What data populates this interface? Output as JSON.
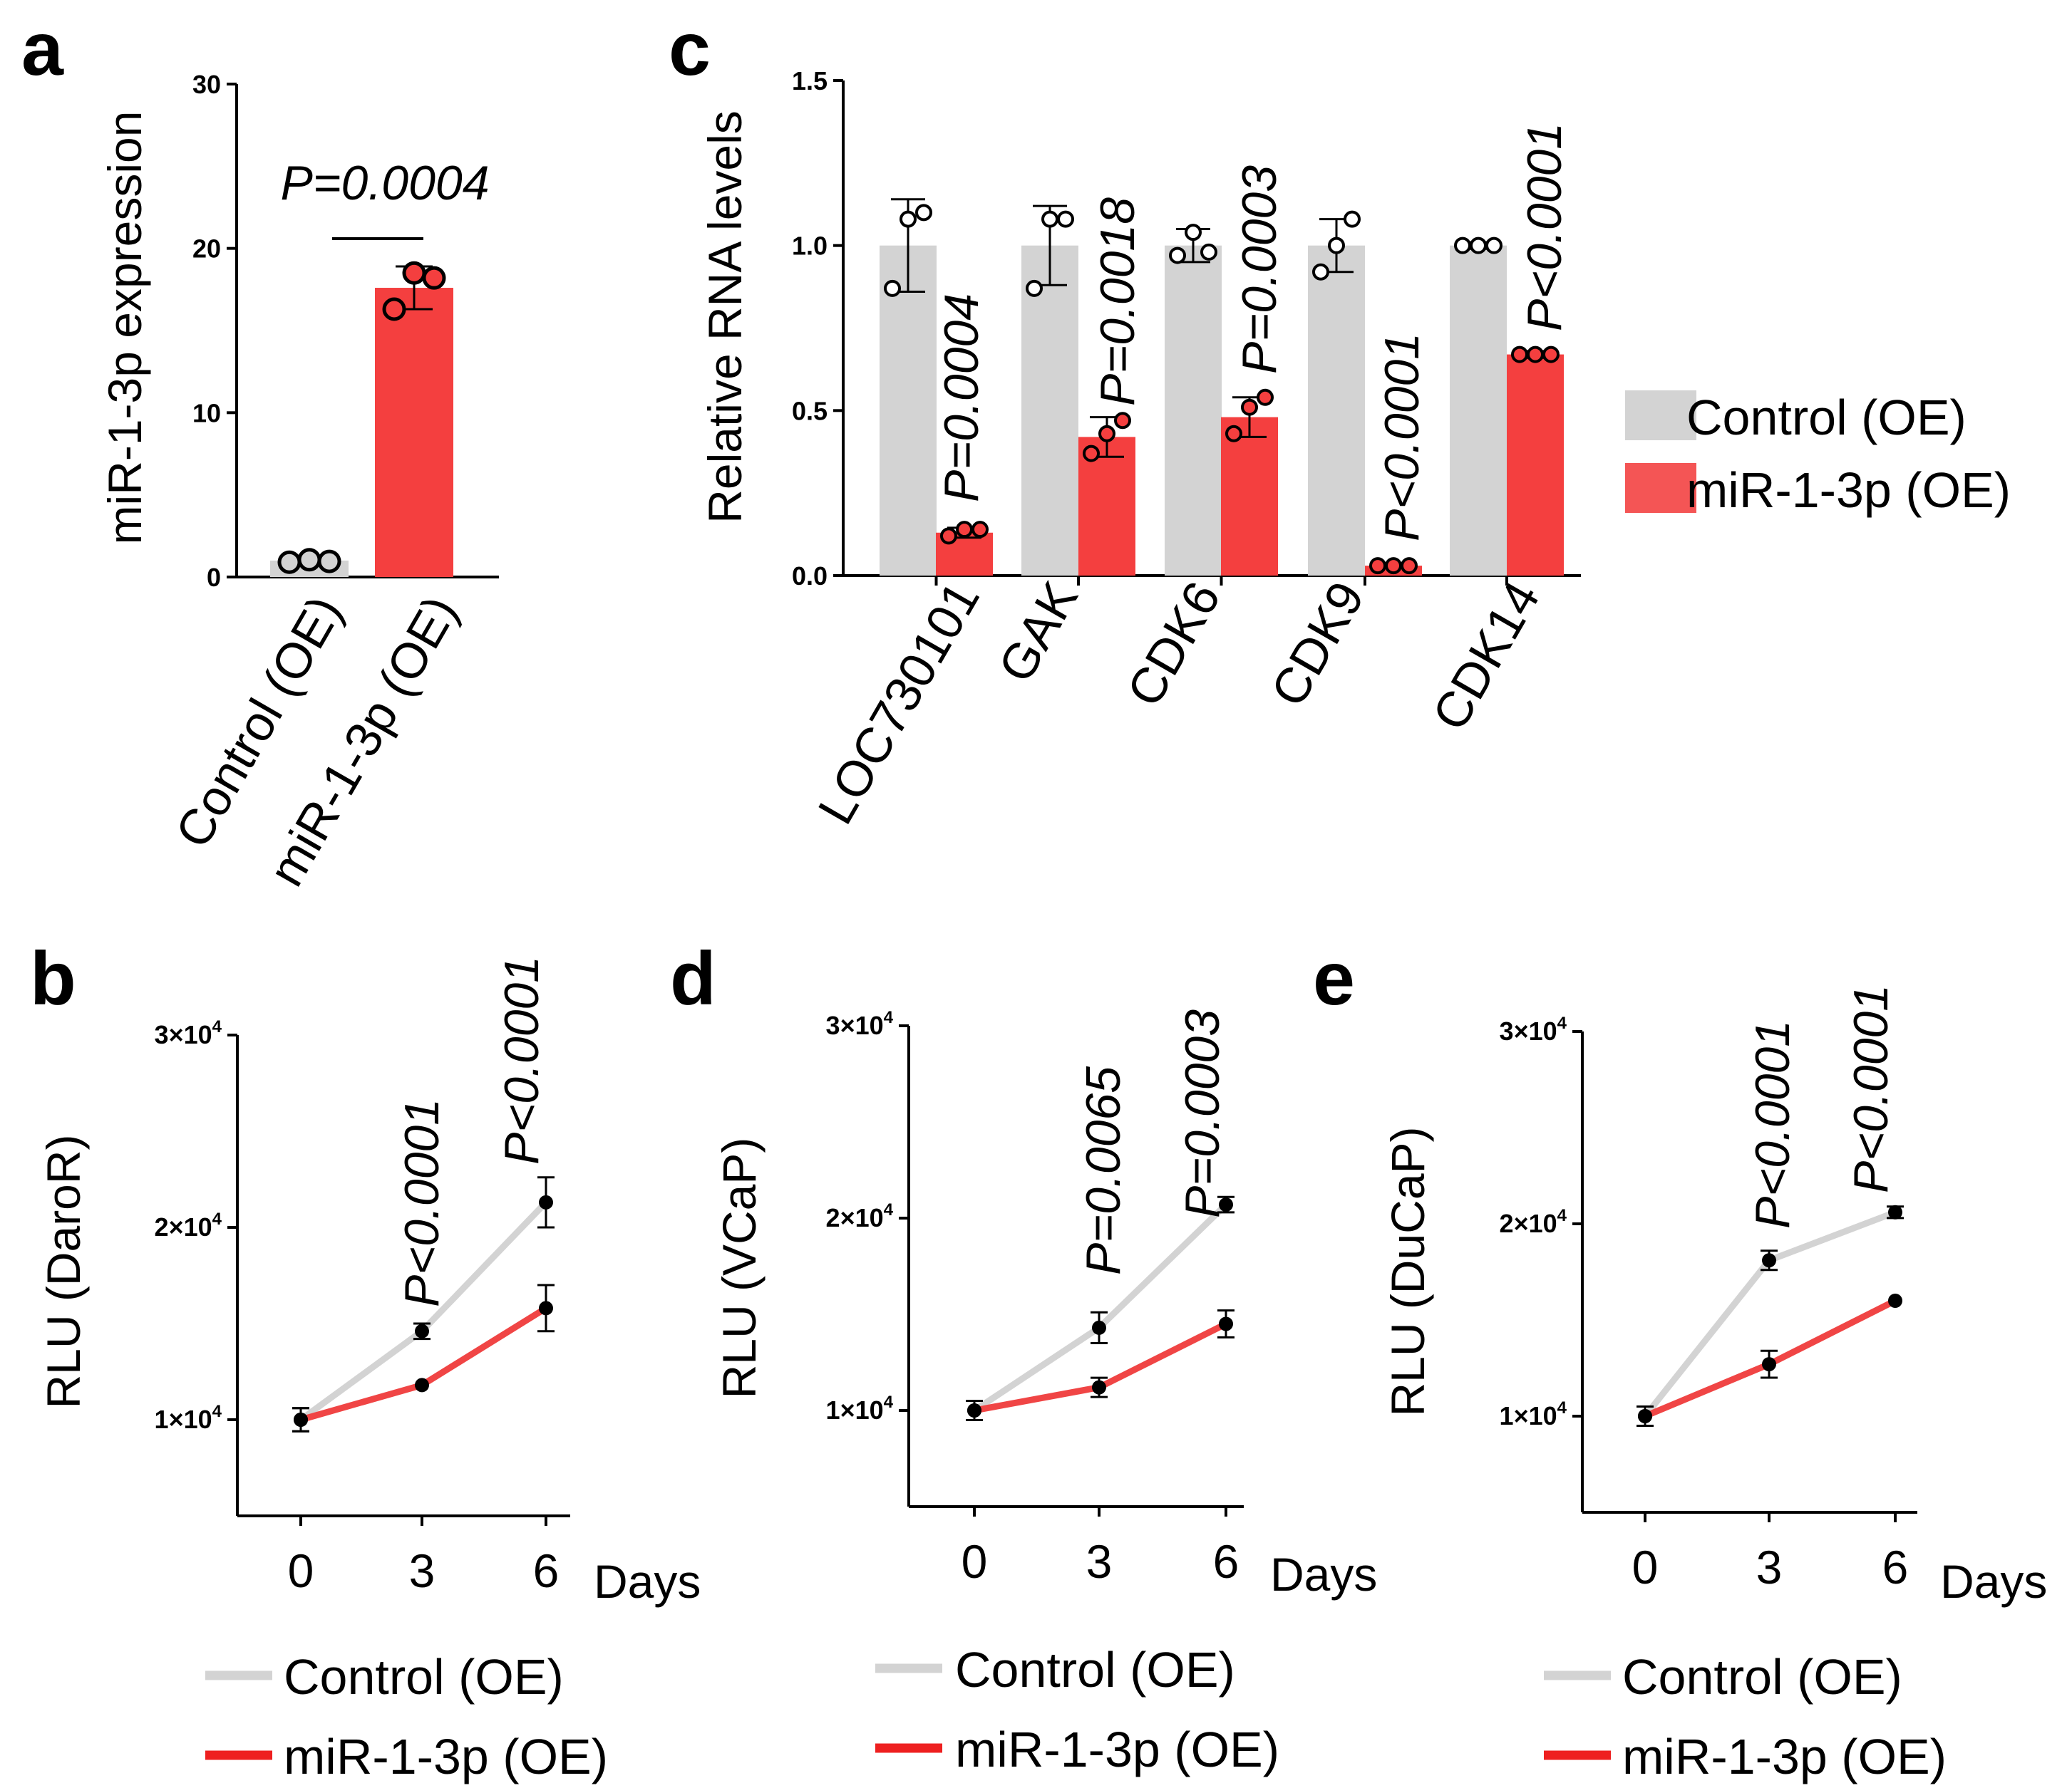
{
  "colors": {
    "control": "#d3d3d3",
    "mir": "#f43f3f",
    "mir_line": "#f04545",
    "mir_legend": "#ee2020",
    "axis": "#000000"
  },
  "chart_data": [
    {
      "panel": "a",
      "type": "bar",
      "categories": [
        "Control (OE)",
        "miR-1-3p (OE)"
      ],
      "values": [
        1.0,
        17.6
      ],
      "errors": [
        0.3,
        1.3
      ],
      "points": [
        [
          0.9,
          1.05,
          0.95
        ],
        [
          16.3,
          18.5,
          18.2
        ]
      ],
      "ylabel": "miR-1-3p expression",
      "ylim": [
        0,
        30
      ],
      "yticks": [
        "0",
        "10",
        "20",
        "30"
      ],
      "pvalue": "P=0.0004",
      "bar_colors": [
        "#d3d3d3",
        "#f43f3f"
      ]
    },
    {
      "panel": "c",
      "type": "bar",
      "categories": [
        "LOC730101",
        "GAK",
        "CDK6",
        "CDK9",
        "CDK14"
      ],
      "series": [
        {
          "name": "Control (OE)",
          "values": [
            1.0,
            1.0,
            1.0,
            1.0,
            1.0
          ],
          "errors": [
            0.14,
            0.12,
            0.05,
            0.08,
            0.01
          ],
          "points": [
            [
              0.87,
              1.08,
              1.1
            ],
            [
              0.87,
              1.08,
              1.08
            ],
            [
              0.97,
              1.04,
              0.98
            ],
            [
              0.92,
              1.0,
              1.08
            ],
            [
              1.0,
              1.0,
              1.0
            ]
          ]
        },
        {
          "name": "miR-1-3p (OE)",
          "values": [
            0.13,
            0.42,
            0.48,
            0.03,
            0.67
          ],
          "errors": [
            0.015,
            0.06,
            0.06,
            0.005,
            0.01
          ],
          "points": [
            [
              0.12,
              0.14,
              0.14
            ],
            [
              0.37,
              0.43,
              0.47
            ],
            [
              0.43,
              0.51,
              0.54
            ],
            [
              0.03,
              0.03,
              0.03
            ],
            [
              0.67,
              0.67,
              0.67
            ]
          ]
        }
      ],
      "pvalues": [
        "P=0.0004",
        "P=0.0018",
        "P=0.0003",
        "P<0.0001",
        "P<0.0001"
      ],
      "ylabel": "Relative RNA levels",
      "ylim": [
        0,
        1.5
      ],
      "yticks": [
        "0.0",
        "0.5",
        "1.0",
        "1.5"
      ],
      "legend": [
        "Control (OE)",
        "miR-1-3p (OE)"
      ]
    },
    {
      "panel": "b",
      "type": "line",
      "x": [
        0,
        3,
        6
      ],
      "xticks": [
        "0",
        "3",
        "6"
      ],
      "xunit": "Days",
      "ylabel": "RLU (DaroR)",
      "ylim": [
        5000,
        30000
      ],
      "yticks": [
        {
          "base": "1×10",
          "exp": "4"
        },
        {
          "base": "2×10",
          "exp": "4"
        },
        {
          "base": "3×10",
          "exp": "4"
        }
      ],
      "series": [
        {
          "name": "Control (OE)",
          "values": [
            10000,
            14600,
            21300
          ],
          "errors": [
            600,
            400,
            1300
          ]
        },
        {
          "name": "miR-1-3p (OE)",
          "values": [
            10000,
            11800,
            15800
          ],
          "errors": [
            600,
            200,
            1200
          ]
        }
      ],
      "pvalues": [
        "P<0.0001",
        "P<0.0001"
      ],
      "legend": [
        "Control (OE)",
        "miR-1-3p (OE)"
      ]
    },
    {
      "panel": "d",
      "type": "line",
      "x": [
        0,
        3,
        6
      ],
      "xticks": [
        "0",
        "3",
        "6"
      ],
      "xunit": "Days",
      "ylabel": "RLU (VCaP)",
      "ylim": [
        5000,
        30000
      ],
      "yticks": [
        {
          "base": "1×10",
          "exp": "4"
        },
        {
          "base": "2×10",
          "exp": "4"
        },
        {
          "base": "3×10",
          "exp": "4"
        }
      ],
      "series": [
        {
          "name": "Control (OE)",
          "values": [
            10000,
            14300,
            20700
          ],
          "errors": [
            500,
            800,
            400
          ]
        },
        {
          "name": "miR-1-3p (OE)",
          "values": [
            10000,
            11200,
            14500
          ],
          "errors": [
            500,
            500,
            700
          ]
        }
      ],
      "pvalues": [
        "P=0.0065",
        "P=0.0003"
      ],
      "legend": [
        "Control (OE)",
        "miR-1-3p (OE)"
      ]
    },
    {
      "panel": "e",
      "type": "line",
      "x": [
        0,
        3,
        6
      ],
      "xticks": [
        "0",
        "3",
        "6"
      ],
      "xunit": "Days",
      "ylabel": "RLU (DuCaP)",
      "ylim": [
        5000,
        30000
      ],
      "yticks": [
        {
          "base": "1×10",
          "exp": "4"
        },
        {
          "base": "2×10",
          "exp": "4"
        },
        {
          "base": "3×10",
          "exp": "4"
        }
      ],
      "series": [
        {
          "name": "Control (OE)",
          "values": [
            10000,
            18100,
            20600
          ],
          "errors": [
            500,
            500,
            300
          ]
        },
        {
          "name": "miR-1-3p (OE)",
          "values": [
            10000,
            12700,
            16000
          ],
          "errors": [
            500,
            700,
            100
          ]
        }
      ],
      "pvalues": [
        "P<0.0001",
        "P<0.0001"
      ],
      "legend": [
        "Control (OE)",
        "miR-1-3p (OE)"
      ]
    }
  ]
}
